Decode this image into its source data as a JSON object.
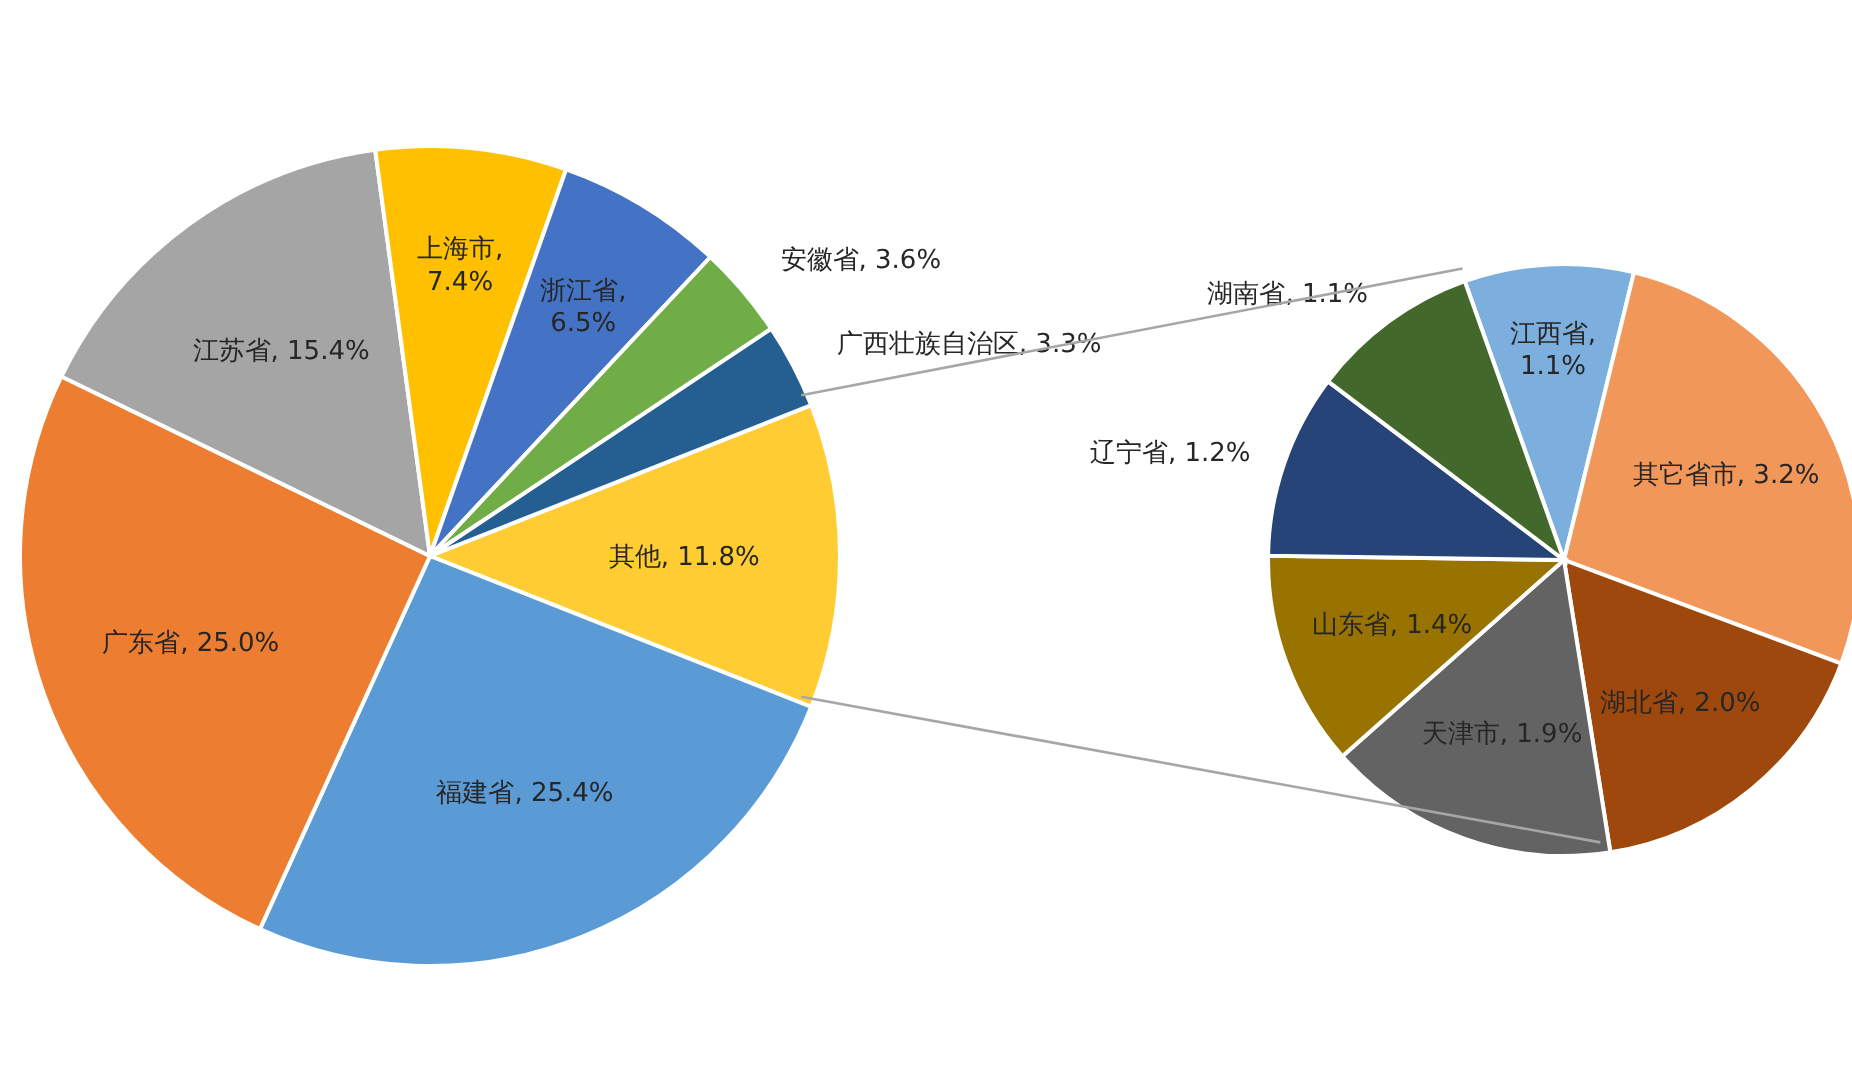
{
  "chart_data": [
    {
      "type": "pie",
      "categories": [
        "其他",
        "福建省",
        "广东省",
        "江苏省",
        "上海市",
        "浙江省",
        "安徽省",
        "广西壮族自治区"
      ],
      "values": [
        11.8,
        25.4,
        25.0,
        15.4,
        7.4,
        6.5,
        3.6,
        3.3
      ],
      "value_labels": [
        ", 11.8%",
        ", 25.4%",
        ", 25.0%",
        ", 15.4%",
        ", 7.4%",
        ", 6.5%",
        ", 3.6%",
        ", 3.3%"
      ],
      "colors": [
        "#ffcc33",
        "#5b9bd5",
        "#ed7d31",
        "#a5a5a5",
        "#ffc000",
        "#4472c4",
        "#70ad47",
        "#255e91"
      ],
      "legend": false
    },
    {
      "type": "pie",
      "categories": [
        "江西省",
        "其它省市",
        "湖北省",
        "天津市",
        "山东省",
        "辽宁省",
        "湖南省"
      ],
      "values": [
        1.1,
        3.2,
        2.0,
        1.9,
        1.4,
        1.2,
        1.1
      ],
      "value_labels": [
        ", 1.1%",
        ", 3.2%",
        ", 2.0%",
        ", 1.9%",
        ", 1.4%",
        ", 1.2%",
        ", 1.1%"
      ],
      "colors": [
        "#7cafdd",
        "#f1975a",
        "#9e480e",
        "#636363",
        "#997300",
        "#264478",
        "#43682b"
      ],
      "legend": false
    }
  ]
}
